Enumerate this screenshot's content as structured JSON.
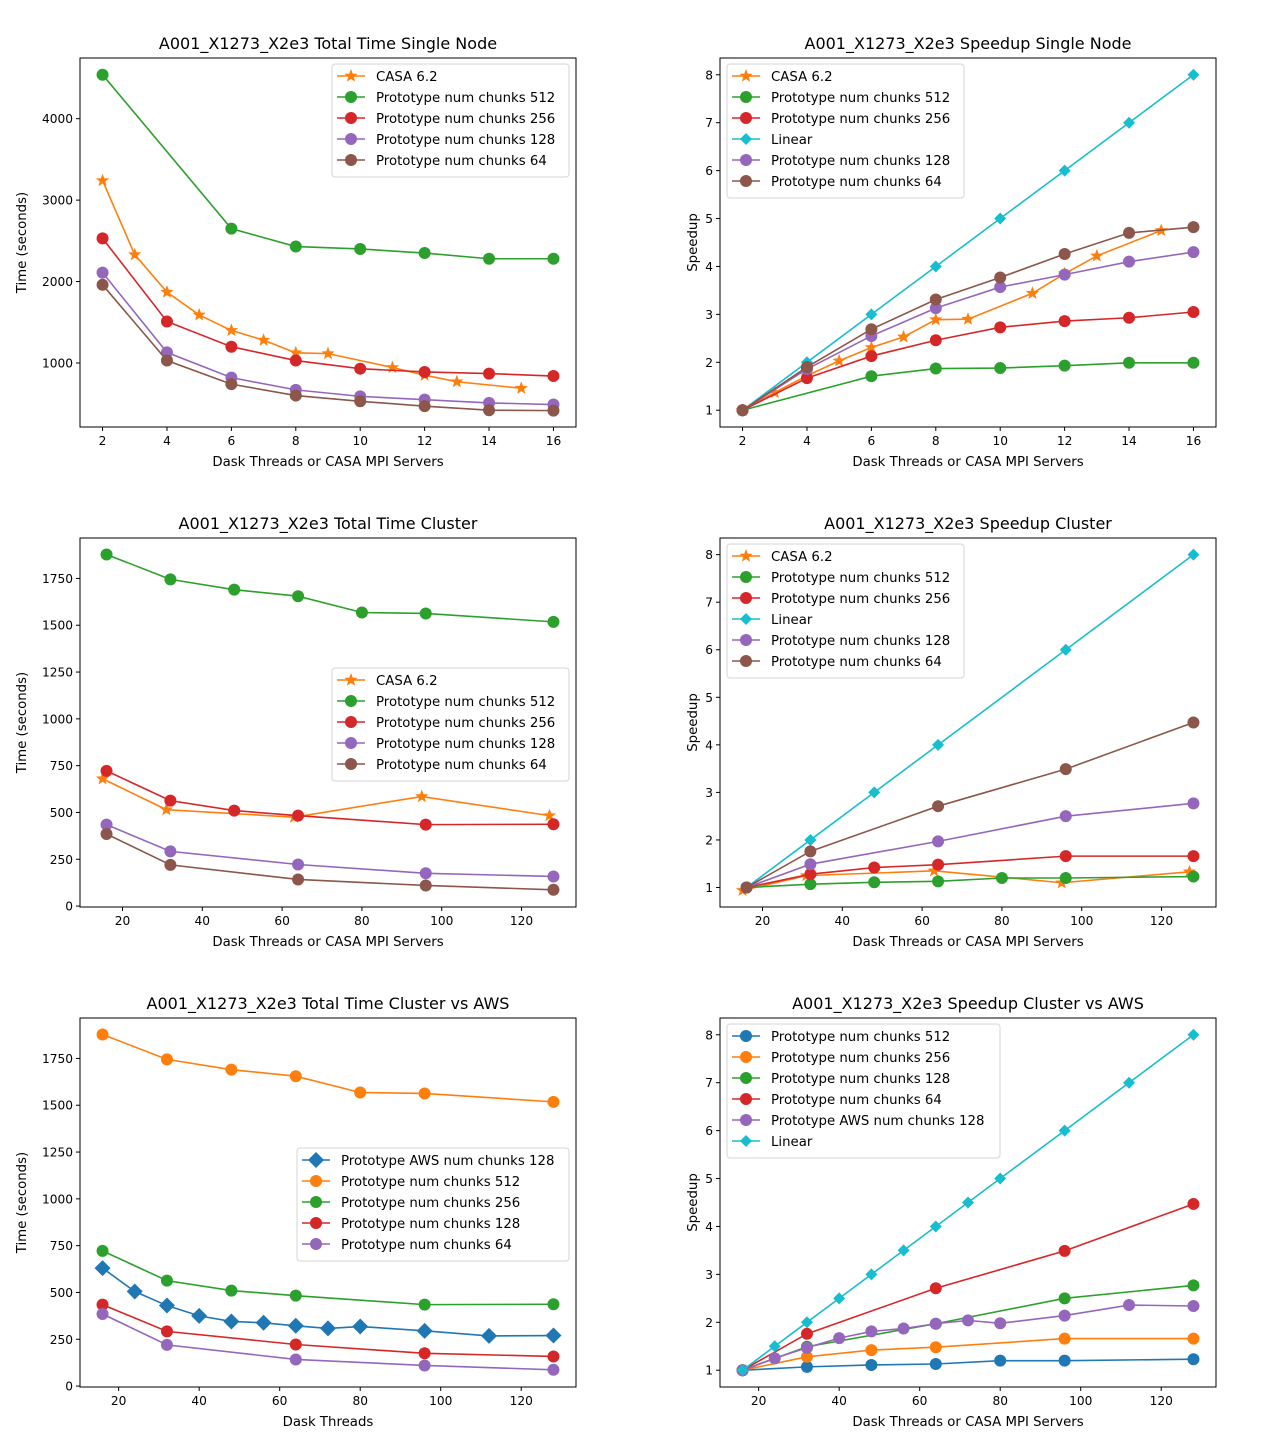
{
  "figure": {
    "panels": 6
  },
  "chart_data": [
    {
      "id": "total-time-single-node",
      "type": "line",
      "title": "A001_X1273_X2e3 Total Time Single Node",
      "xlabel": "Dask Threads or CASA MPI Servers",
      "ylabel": "Time (seconds)",
      "xticks": [
        2,
        4,
        6,
        8,
        10,
        12,
        14,
        16
      ],
      "yticks": [
        1000,
        2000,
        3000,
        4000
      ],
      "xlim": [
        1.3,
        16.7
      ],
      "ylim": [
        214,
        4745
      ],
      "grid": false,
      "legend_position": "upper-right",
      "series": [
        {
          "name": "CASA 6.2",
          "color": "#ff7f0e",
          "marker": "star",
          "x": [
            2,
            3,
            4,
            5,
            6,
            7,
            8,
            9,
            11,
            12,
            13,
            15
          ],
          "y": [
            3240,
            2330,
            1870,
            1590,
            1400,
            1280,
            1125,
            1115,
            945,
            850,
            770,
            690
          ]
        },
        {
          "name": "Prototype num chunks 512",
          "color": "#2ca02c",
          "marker": "circle",
          "x": [
            2,
            6,
            8,
            10,
            12,
            14,
            16
          ],
          "y": [
            4540,
            2650,
            2430,
            2400,
            2350,
            2280,
            2280
          ]
        },
        {
          "name": "Prototype num chunks 256",
          "color": "#d62728",
          "marker": "circle",
          "x": [
            2,
            4,
            6,
            8,
            10,
            12,
            14,
            16
          ],
          "y": [
            2530,
            1510,
            1200,
            1030,
            930,
            890,
            870,
            840
          ]
        },
        {
          "name": "Prototype num chunks 128",
          "color": "#9467bd",
          "marker": "circle",
          "x": [
            2,
            4,
            6,
            8,
            10,
            12,
            14,
            16
          ],
          "y": [
            2110,
            1130,
            820,
            670,
            590,
            550,
            510,
            490
          ]
        },
        {
          "name": "Prototype num chunks 64",
          "color": "#8c564b",
          "marker": "circle",
          "x": [
            2,
            4,
            6,
            8,
            10,
            12,
            14,
            16
          ],
          "y": [
            1960,
            1030,
            740,
            600,
            530,
            470,
            420,
            415
          ]
        }
      ]
    },
    {
      "id": "speedup-single-node",
      "type": "line",
      "title": "A001_X1273_X2e3 Speedup Single Node",
      "xlabel": "Dask Threads or CASA MPI Servers",
      "ylabel": "Speedup",
      "xticks": [
        2,
        4,
        6,
        8,
        10,
        12,
        14,
        16
      ],
      "yticks": [
        1,
        2,
        3,
        4,
        5,
        6,
        7,
        8
      ],
      "xlim": [
        1.3,
        16.7
      ],
      "ylim": [
        0.65,
        8.35
      ],
      "grid": false,
      "legend_position": "upper-left",
      "series": [
        {
          "name": "CASA 6.2",
          "color": "#ff7f0e",
          "marker": "star",
          "x": [
            2,
            3,
            4,
            5,
            6,
            7,
            8,
            9,
            11,
            12,
            13,
            15
          ],
          "y": [
            1.0,
            1.37,
            1.72,
            2.03,
            2.31,
            2.53,
            2.89,
            2.9,
            3.44,
            3.85,
            4.22,
            4.75
          ]
        },
        {
          "name": "Prototype num chunks 512",
          "color": "#2ca02c",
          "marker": "circle",
          "x": [
            2,
            6,
            8,
            10,
            12,
            14,
            16
          ],
          "y": [
            1.0,
            1.71,
            1.87,
            1.88,
            1.93,
            1.99,
            1.99
          ]
        },
        {
          "name": "Prototype num chunks 256",
          "color": "#d62728",
          "marker": "circle",
          "x": [
            2,
            4,
            6,
            8,
            10,
            12,
            14,
            16
          ],
          "y": [
            1.0,
            1.67,
            2.13,
            2.46,
            2.73,
            2.86,
            2.93,
            3.05
          ]
        },
        {
          "name": "Linear",
          "color": "#17becf",
          "marker": "diamond",
          "x": [
            2,
            4,
            6,
            8,
            10,
            12,
            14,
            16
          ],
          "y": [
            1,
            2,
            3,
            4,
            5,
            6,
            7,
            8
          ]
        },
        {
          "name": "Prototype num chunks 128",
          "color": "#9467bd",
          "marker": "circle",
          "x": [
            2,
            4,
            6,
            8,
            10,
            12,
            14,
            16
          ],
          "y": [
            1.0,
            1.86,
            2.55,
            3.13,
            3.57,
            3.83,
            4.1,
            4.3
          ]
        },
        {
          "name": "Prototype num chunks 64",
          "color": "#8c564b",
          "marker": "circle",
          "x": [
            2,
            4,
            6,
            8,
            10,
            12,
            14,
            16
          ],
          "y": [
            1.0,
            1.9,
            2.69,
            3.31,
            3.77,
            4.26,
            4.7,
            4.82
          ]
        }
      ]
    },
    {
      "id": "total-time-cluster",
      "type": "line",
      "title": "A001_X1273_X2e3 Total Time Cluster",
      "xlabel": "Dask Threads or CASA MPI Servers",
      "ylabel": "Time (seconds)",
      "xticks": [
        20,
        40,
        60,
        80,
        100,
        120
      ],
      "yticks": [
        0,
        250,
        500,
        750,
        1000,
        1250,
        1500,
        1750
      ],
      "xlim": [
        9.35,
        133.65
      ],
      "ylim": [
        -5,
        1966
      ],
      "grid": false,
      "legend_position": "center-right",
      "series": [
        {
          "name": "CASA 6.2",
          "color": "#ff7f0e",
          "marker": "star",
          "x": [
            15,
            31,
            63,
            95,
            127
          ],
          "y": [
            680,
            515,
            475,
            585,
            483
          ]
        },
        {
          "name": "Prototype num chunks 512",
          "color": "#2ca02c",
          "marker": "circle",
          "x": [
            16,
            32,
            48,
            64,
            80,
            96,
            128
          ],
          "y": [
            1878,
            1745,
            1690,
            1655,
            1568,
            1563,
            1518
          ]
        },
        {
          "name": "Prototype num chunks 256",
          "color": "#d62728",
          "marker": "circle",
          "x": [
            16,
            32,
            48,
            64,
            96,
            128
          ],
          "y": [
            722,
            563,
            510,
            483,
            435,
            437
          ]
        },
        {
          "name": "Prototype num chunks 128",
          "color": "#9467bd",
          "marker": "circle",
          "x": [
            16,
            32,
            64,
            96,
            128
          ],
          "y": [
            435,
            292,
            222,
            175,
            158
          ]
        },
        {
          "name": "Prototype num chunks 64",
          "color": "#8c564b",
          "marker": "circle",
          "x": [
            16,
            32,
            64,
            96,
            128
          ],
          "y": [
            385,
            220,
            142,
            110,
            87
          ]
        }
      ]
    },
    {
      "id": "speedup-cluster",
      "type": "line",
      "title": "A001_X1273_X2e3 Speedup Cluster",
      "xlabel": "Dask Threads or CASA MPI Servers",
      "ylabel": "Speedup",
      "xticks": [
        20,
        40,
        60,
        80,
        100,
        120
      ],
      "yticks": [
        1,
        2,
        3,
        4,
        5,
        6,
        7,
        8
      ],
      "xlim": [
        9.35,
        133.65
      ],
      "ylim": [
        0.59,
        8.35
      ],
      "grid": false,
      "legend_position": "upper-left",
      "series": [
        {
          "name": "CASA 6.2",
          "color": "#ff7f0e",
          "marker": "star",
          "x": [
            15,
            31,
            63,
            95,
            127
          ],
          "y": [
            0.94,
            1.25,
            1.35,
            1.1,
            1.33
          ]
        },
        {
          "name": "Prototype num chunks 512",
          "color": "#2ca02c",
          "marker": "circle",
          "x": [
            16,
            32,
            48,
            64,
            80,
            96,
            128
          ],
          "y": [
            1.0,
            1.07,
            1.11,
            1.13,
            1.2,
            1.2,
            1.23
          ]
        },
        {
          "name": "Prototype num chunks 256",
          "color": "#d62728",
          "marker": "circle",
          "x": [
            16,
            32,
            48,
            64,
            96,
            128
          ],
          "y": [
            1.0,
            1.28,
            1.42,
            1.48,
            1.66,
            1.66
          ]
        },
        {
          "name": "Linear",
          "color": "#17becf",
          "marker": "diamond",
          "x": [
            16,
            32,
            48,
            64,
            96,
            128
          ],
          "y": [
            1,
            2,
            3,
            4,
            6,
            8
          ]
        },
        {
          "name": "Prototype num chunks 128",
          "color": "#9467bd",
          "marker": "circle",
          "x": [
            16,
            32,
            64,
            96,
            128
          ],
          "y": [
            1.0,
            1.49,
            1.97,
            2.5,
            2.77
          ]
        },
        {
          "name": "Prototype num chunks 64",
          "color": "#8c564b",
          "marker": "circle",
          "x": [
            16,
            32,
            64,
            96,
            128
          ],
          "y": [
            1.0,
            1.76,
            2.71,
            3.49,
            4.47
          ]
        }
      ]
    },
    {
      "id": "total-time-cluster-vs-aws",
      "type": "line",
      "title": "A001_X1273_X2e3 Total Time Cluster vs AWS",
      "xlabel": "Dask Threads",
      "ylabel": "Time (seconds)",
      "xticks": [
        20,
        40,
        60,
        80,
        100,
        120
      ],
      "yticks": [
        0,
        250,
        500,
        750,
        1000,
        1250,
        1500,
        1750
      ],
      "xlim": [
        10.4,
        133.6
      ],
      "ylim": [
        -5,
        1966
      ],
      "grid": false,
      "legend_position": "center-right",
      "series": [
        {
          "name": "Prototype AWS num chunks 128",
          "color": "#1f77b4",
          "marker": "diamond",
          "x": [
            16,
            24,
            32,
            40,
            48,
            56,
            64,
            72,
            80,
            96,
            112,
            128
          ],
          "y": [
            630,
            505,
            430,
            375,
            345,
            338,
            322,
            308,
            318,
            295,
            268,
            270
          ]
        },
        {
          "name": "Prototype num chunks 512",
          "color": "#ff7f0e",
          "marker": "circle",
          "x": [
            16,
            32,
            48,
            64,
            80,
            96,
            128
          ],
          "y": [
            1878,
            1745,
            1690,
            1655,
            1568,
            1563,
            1518
          ]
        },
        {
          "name": "Prototype num chunks 256",
          "color": "#2ca02c",
          "marker": "circle",
          "x": [
            16,
            32,
            48,
            64,
            96,
            128
          ],
          "y": [
            722,
            563,
            510,
            483,
            435,
            437
          ]
        },
        {
          "name": "Prototype num chunks 128",
          "color": "#d62728",
          "marker": "circle",
          "x": [
            16,
            32,
            64,
            96,
            128
          ],
          "y": [
            435,
            292,
            222,
            175,
            158
          ]
        },
        {
          "name": "Prototype num chunks 64",
          "color": "#9467bd",
          "marker": "circle",
          "x": [
            16,
            32,
            64,
            96,
            128
          ],
          "y": [
            385,
            220,
            142,
            110,
            87
          ]
        }
      ]
    },
    {
      "id": "speedup-cluster-vs-aws",
      "type": "line",
      "title": "A001_X1273_X2e3 Speedup Cluster vs AWS",
      "xlabel": "Dask Threads or CASA MPI Servers",
      "ylabel": "Speedup",
      "xticks": [
        20,
        40,
        60,
        80,
        100,
        120
      ],
      "yticks": [
        1,
        2,
        3,
        4,
        5,
        6,
        7,
        8
      ],
      "xlim": [
        10.4,
        133.6
      ],
      "ylim": [
        0.65,
        8.35
      ],
      "grid": false,
      "legend_position": "upper-left",
      "series": [
        {
          "name": "Prototype num chunks 512",
          "color": "#1f77b4",
          "marker": "circle",
          "x": [
            16,
            32,
            48,
            64,
            80,
            96,
            128
          ],
          "y": [
            1.0,
            1.07,
            1.11,
            1.13,
            1.2,
            1.2,
            1.23
          ]
        },
        {
          "name": "Prototype num chunks 256",
          "color": "#ff7f0e",
          "marker": "circle",
          "x": [
            16,
            32,
            48,
            64,
            96,
            128
          ],
          "y": [
            1.0,
            1.28,
            1.42,
            1.48,
            1.66,
            1.66
          ]
        },
        {
          "name": "Prototype num chunks 128",
          "color": "#2ca02c",
          "marker": "circle",
          "x": [
            16,
            32,
            64,
            96,
            128
          ],
          "y": [
            1.0,
            1.49,
            1.97,
            2.5,
            2.77
          ]
        },
        {
          "name": "Prototype num chunks 64",
          "color": "#d62728",
          "marker": "circle",
          "x": [
            16,
            32,
            64,
            96,
            128
          ],
          "y": [
            1.0,
            1.76,
            2.71,
            3.49,
            4.47
          ]
        },
        {
          "name": "Prototype AWS num chunks 128",
          "color": "#9467bd",
          "marker": "circle",
          "x": [
            16,
            24,
            32,
            40,
            48,
            56,
            64,
            72,
            80,
            96,
            112,
            128
          ],
          "y": [
            1.0,
            1.25,
            1.47,
            1.67,
            1.81,
            1.87,
            1.97,
            2.04,
            1.98,
            2.14,
            2.36,
            2.34
          ]
        },
        {
          "name": "Linear",
          "color": "#17becf",
          "marker": "diamond",
          "x": [
            16,
            24,
            32,
            40,
            48,
            56,
            64,
            72,
            80,
            96,
            112,
            128
          ],
          "y": [
            1,
            1.5,
            2,
            2.5,
            3,
            3.5,
            4,
            4.5,
            5,
            6,
            7,
            8
          ]
        }
      ]
    }
  ]
}
